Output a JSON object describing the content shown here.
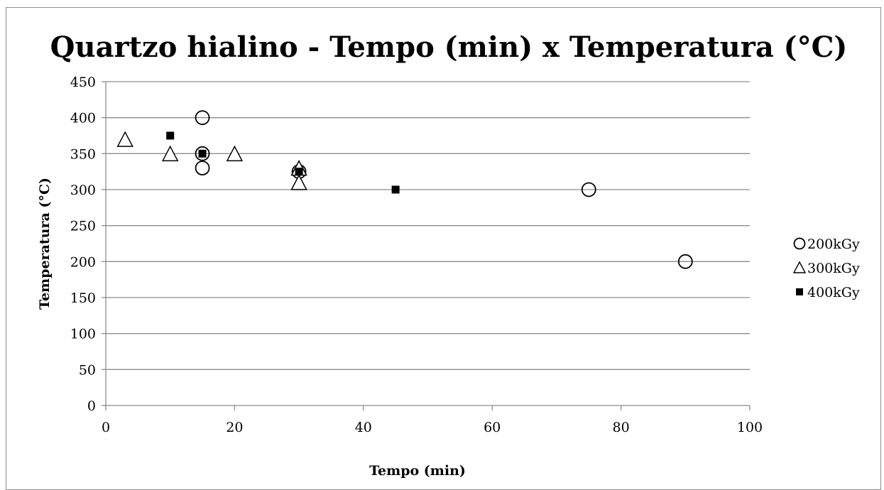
{
  "chart_data": {
    "type": "scatter",
    "title": "Quartzo hialino - Tempo (min) x Temperatura (°C)",
    "xlabel": "Tempo (min)",
    "ylabel": "Temperatura (°C)",
    "xlim": [
      0,
      100
    ],
    "ylim": [
      0,
      450
    ],
    "xticks": [
      0,
      20,
      40,
      60,
      80,
      100
    ],
    "yticks": [
      0,
      50,
      100,
      150,
      200,
      250,
      300,
      350,
      400,
      450
    ],
    "grid": "horizontal",
    "legend_position": "right",
    "series": [
      {
        "name": "200kGy",
        "marker": "circle",
        "color": "#000000",
        "points": [
          {
            "x": 15,
            "y": 400
          },
          {
            "x": 15,
            "y": 350
          },
          {
            "x": 15,
            "y": 330
          },
          {
            "x": 30,
            "y": 325
          },
          {
            "x": 75,
            "y": 300
          },
          {
            "x": 90,
            "y": 200
          }
        ]
      },
      {
        "name": "300kGy",
        "marker": "triangle",
        "color": "#000000",
        "points": [
          {
            "x": 3,
            "y": 370
          },
          {
            "x": 10,
            "y": 350
          },
          {
            "x": 20,
            "y": 350
          },
          {
            "x": 30,
            "y": 330
          },
          {
            "x": 30,
            "y": 310
          }
        ]
      },
      {
        "name": "400kGy",
        "marker": "square",
        "color": "#000000",
        "points": [
          {
            "x": 10,
            "y": 375
          },
          {
            "x": 15,
            "y": 350
          },
          {
            "x": 30,
            "y": 325
          },
          {
            "x": 45,
            "y": 300
          }
        ]
      }
    ]
  }
}
